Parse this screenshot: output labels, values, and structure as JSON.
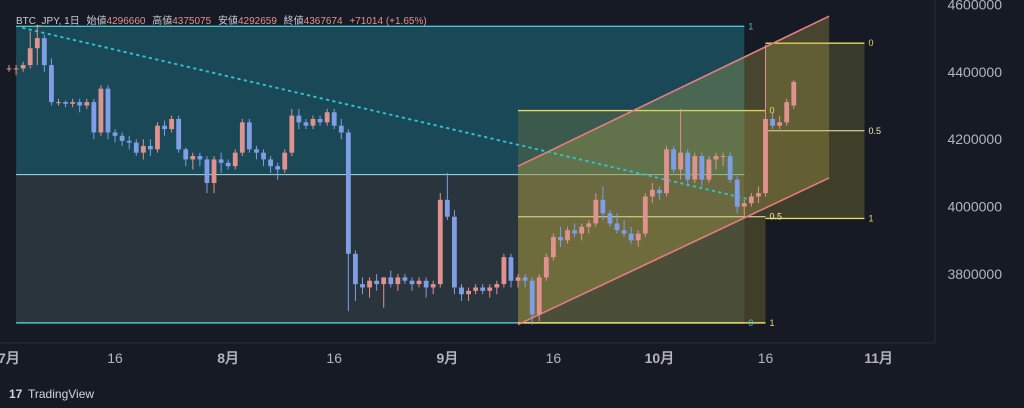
{
  "legend": {
    "symbol": "BTC_JPY, 1日",
    "open_label": "始値",
    "open": "4296660",
    "high_label": "高値",
    "high": "4375075",
    "low_label": "安値",
    "low": "4292659",
    "close_label": "終値",
    "close": "4367674",
    "change": "+71014 (+1.65%)"
  },
  "brand": {
    "logo_mark": "17",
    "name": "TradingView"
  },
  "colors": {
    "background": "#161a25",
    "up": "#e0928f",
    "down": "#7f9ee6",
    "fib_cyan": "#4cc4cc",
    "fib_yellow": "#e8da5a",
    "channel_pink": "#e87c82",
    "trend_dot": "#2ac4cc"
  },
  "chart_data": {
    "type": "candlestick",
    "symbol": "BTC_JPY",
    "interval": "1日",
    "ylim": [
      3620000,
      4620000
    ],
    "y_ticks": [
      "4600000",
      "4400000",
      "4200000",
      "4000000",
      "3800000"
    ],
    "x_ticks": [
      {
        "label": "7月",
        "date": "2023-07-01"
      },
      {
        "label": "16",
        "date": "2023-07-16"
      },
      {
        "label": "8月",
        "date": "2023-08-01"
      },
      {
        "label": "16",
        "date": "2023-08-16"
      },
      {
        "label": "9月",
        "date": "2023-09-01"
      },
      {
        "label": "16",
        "date": "2023-09-16"
      },
      {
        "label": "10月",
        "date": "2023-10-01"
      },
      {
        "label": "16",
        "date": "2023-10-16"
      },
      {
        "label": "11月",
        "date": "2023-11-01"
      }
    ],
    "xlim": [
      "2023-07-01",
      "2023-11-07"
    ],
    "first_candle_date": "2023-07-01",
    "candles": [
      [
        4410000,
        4420000,
        4400000,
        4410000
      ],
      [
        4410000,
        4420000,
        4390000,
        4410000
      ],
      [
        4410000,
        4430000,
        4400000,
        4420000
      ],
      [
        4420000,
        4520000,
        4410000,
        4470000
      ],
      [
        4470000,
        4540000,
        4420000,
        4500000
      ],
      [
        4500000,
        4510000,
        4400000,
        4420000
      ],
      [
        4420000,
        4440000,
        4300000,
        4310000
      ],
      [
        4310000,
        4320000,
        4300000,
        4310000
      ],
      [
        4310000,
        4315000,
        4295000,
        4305000
      ],
      [
        4305000,
        4320000,
        4295000,
        4310000
      ],
      [
        4310000,
        4320000,
        4280000,
        4300000
      ],
      [
        4300000,
        4320000,
        4290000,
        4310000
      ],
      [
        4310000,
        4320000,
        4200000,
        4220000
      ],
      [
        4220000,
        4360000,
        4210000,
        4350000
      ],
      [
        4350000,
        4360000,
        4200000,
        4220000
      ],
      [
        4220000,
        4230000,
        4190000,
        4210000
      ],
      [
        4210000,
        4220000,
        4180000,
        4195000
      ],
      [
        4195000,
        4210000,
        4170000,
        4190000
      ],
      [
        4190000,
        4200000,
        4150000,
        4160000
      ],
      [
        4160000,
        4200000,
        4140000,
        4180000
      ],
      [
        4180000,
        4200000,
        4150000,
        4170000
      ],
      [
        4170000,
        4250000,
        4160000,
        4240000
      ],
      [
        4240000,
        4255000,
        4210000,
        4230000
      ],
      [
        4230000,
        4270000,
        4220000,
        4260000
      ],
      [
        4260000,
        4270000,
        4160000,
        4170000
      ],
      [
        4170000,
        4175000,
        4120000,
        4140000
      ],
      [
        4140000,
        4160000,
        4110000,
        4150000
      ],
      [
        4150000,
        4160000,
        4120000,
        4140000
      ],
      [
        4140000,
        4150000,
        4040000,
        4070000
      ],
      [
        4070000,
        4150000,
        4040000,
        4140000
      ],
      [
        4140000,
        4160000,
        4100000,
        4130000
      ],
      [
        4130000,
        4140000,
        4110000,
        4120000
      ],
      [
        4120000,
        4170000,
        4110000,
        4160000
      ],
      [
        4160000,
        4260000,
        4150000,
        4250000
      ],
      [
        4250000,
        4260000,
        4160000,
        4170000
      ],
      [
        4170000,
        4180000,
        4140000,
        4160000
      ],
      [
        4160000,
        4170000,
        4120000,
        4140000
      ],
      [
        4140000,
        4150000,
        4100000,
        4120000
      ],
      [
        4120000,
        4130000,
        4080000,
        4110000
      ],
      [
        4110000,
        4170000,
        4100000,
        4160000
      ],
      [
        4160000,
        4290000,
        4150000,
        4270000
      ],
      [
        4270000,
        4290000,
        4230000,
        4250000
      ],
      [
        4250000,
        4260000,
        4230000,
        4240000
      ],
      [
        4240000,
        4270000,
        4230000,
        4260000
      ],
      [
        4260000,
        4270000,
        4240000,
        4250000
      ],
      [
        4250000,
        4290000,
        4240000,
        4280000
      ],
      [
        4280000,
        4290000,
        4230000,
        4240000
      ],
      [
        4240000,
        4260000,
        4200000,
        4220000
      ],
      [
        4220000,
        4230000,
        3690000,
        3860000
      ],
      [
        3860000,
        3870000,
        3720000,
        3770000
      ],
      [
        3770000,
        3790000,
        3740000,
        3760000
      ],
      [
        3760000,
        3790000,
        3730000,
        3780000
      ],
      [
        3780000,
        3800000,
        3750000,
        3770000
      ],
      [
        3770000,
        3790000,
        3700000,
        3790000
      ],
      [
        3790000,
        3810000,
        3760000,
        3770000
      ],
      [
        3770000,
        3800000,
        3750000,
        3790000
      ],
      [
        3790000,
        3800000,
        3770000,
        3780000
      ],
      [
        3780000,
        3790000,
        3750000,
        3770000
      ],
      [
        3770000,
        3790000,
        3760000,
        3780000
      ],
      [
        3780000,
        3790000,
        3730000,
        3760000
      ],
      [
        3760000,
        3780000,
        3740000,
        3770000
      ],
      [
        3770000,
        4040000,
        3760000,
        4020000
      ],
      [
        4020000,
        4100000,
        3960000,
        3970000
      ],
      [
        3970000,
        3990000,
        3740000,
        3760000
      ],
      [
        3760000,
        3770000,
        3720000,
        3740000
      ],
      [
        3740000,
        3760000,
        3720000,
        3750000
      ],
      [
        3750000,
        3770000,
        3740000,
        3760000
      ],
      [
        3760000,
        3770000,
        3740000,
        3750000
      ],
      [
        3750000,
        3770000,
        3730000,
        3760000
      ],
      [
        3760000,
        3780000,
        3740000,
        3770000
      ],
      [
        3770000,
        3860000,
        3760000,
        3850000
      ],
      [
        3850000,
        3860000,
        3760000,
        3780000
      ],
      [
        3780000,
        3800000,
        3760000,
        3790000
      ],
      [
        3790000,
        3800000,
        3760000,
        3780000
      ],
      [
        3780000,
        3790000,
        3650000,
        3680000
      ],
      [
        3680000,
        3800000,
        3660000,
        3790000
      ],
      [
        3790000,
        3860000,
        3780000,
        3850000
      ],
      [
        3850000,
        3920000,
        3840000,
        3910000
      ],
      [
        3910000,
        3940000,
        3880000,
        3900000
      ],
      [
        3900000,
        3940000,
        3890000,
        3930000
      ],
      [
        3930000,
        3950000,
        3910000,
        3920000
      ],
      [
        3920000,
        3950000,
        3900000,
        3940000
      ],
      [
        3940000,
        3960000,
        3920000,
        3950000
      ],
      [
        3950000,
        4040000,
        3940000,
        4020000
      ],
      [
        4020000,
        4060000,
        3960000,
        3980000
      ],
      [
        3980000,
        3990000,
        3940000,
        3950000
      ],
      [
        3950000,
        3980000,
        3920000,
        3930000
      ],
      [
        3930000,
        3960000,
        3910000,
        3920000
      ],
      [
        3920000,
        3940000,
        3890000,
        3900000
      ],
      [
        3900000,
        3930000,
        3880000,
        3920000
      ],
      [
        3920000,
        4040000,
        3910000,
        4030000
      ],
      [
        4030000,
        4070000,
        4010000,
        4050000
      ],
      [
        4050000,
        4060000,
        4020000,
        4040000
      ],
      [
        4040000,
        4180000,
        4030000,
        4170000
      ],
      [
        4170000,
        4180000,
        4100000,
        4110000
      ],
      [
        4110000,
        4290000,
        4080000,
        4160000
      ],
      [
        4160000,
        4170000,
        4060000,
        4080000
      ],
      [
        4080000,
        4160000,
        4070000,
        4150000
      ],
      [
        4150000,
        4160000,
        4060000,
        4080000
      ],
      [
        4080000,
        4150000,
        4070000,
        4140000
      ],
      [
        4140000,
        4160000,
        4110000,
        4150000
      ],
      [
        4150000,
        4160000,
        4120000,
        4150000
      ],
      [
        4150000,
        4160000,
        4070000,
        4080000
      ],
      [
        4080000,
        4090000,
        3980000,
        4000000
      ],
      [
        4000000,
        4020000,
        3970000,
        4010000
      ],
      [
        4010000,
        4040000,
        4000000,
        4030000
      ],
      [
        4030000,
        4060000,
        4010000,
        4040000
      ],
      [
        4040000,
        4480000,
        4030000,
        4260000
      ],
      [
        4260000,
        4280000,
        4230000,
        4240000
      ],
      [
        4240000,
        4270000,
        4230000,
        4250000
      ],
      [
        4250000,
        4320000,
        4240000,
        4310000
      ],
      [
        4300000,
        4375000,
        4290000,
        4370000
      ]
    ],
    "fib_retracements": [
      {
        "color": "cyan",
        "start_date": "2023-07-02",
        "end_date": "2023-10-13",
        "price_1": 4535000,
        "price_0": 3655000,
        "levels": [
          {
            "ratio": 1,
            "label": "1"
          },
          {
            "ratio": 0,
            "label": "0"
          }
        ]
      },
      {
        "color": "yellow",
        "start_date": "2023-09-11",
        "end_date": "2023-10-16",
        "price_0": 4285000,
        "price_1": 3655000,
        "levels": [
          {
            "ratio": 0,
            "label": "0"
          },
          {
            "ratio": 0.5,
            "label": "0.5"
          },
          {
            "ratio": 1,
            "label": "1"
          }
        ]
      },
      {
        "color": "yellow",
        "start_date": "2023-10-16",
        "end_date": "2023-10-30",
        "price_0": 4485000,
        "price_1": 3965000,
        "levels": [
          {
            "ratio": 0,
            "label": "0"
          },
          {
            "ratio": 0.5,
            "label": "0.5"
          },
          {
            "ratio": 1,
            "label": "1"
          }
        ]
      }
    ],
    "trend_line": {
      "style": "dotted",
      "start_date": "2023-07-03",
      "start_price": 4530000,
      "end_date": "2023-10-14",
      "end_price": 4020000
    },
    "channel": {
      "upper": {
        "start_date": "2023-09-11",
        "start_price": 4120000,
        "end_date": "2023-10-25",
        "end_price": 4565000
      },
      "lower": {
        "start_date": "2023-09-11",
        "start_price": 3650000,
        "end_date": "2023-10-25",
        "end_price": 4085000
      }
    }
  }
}
